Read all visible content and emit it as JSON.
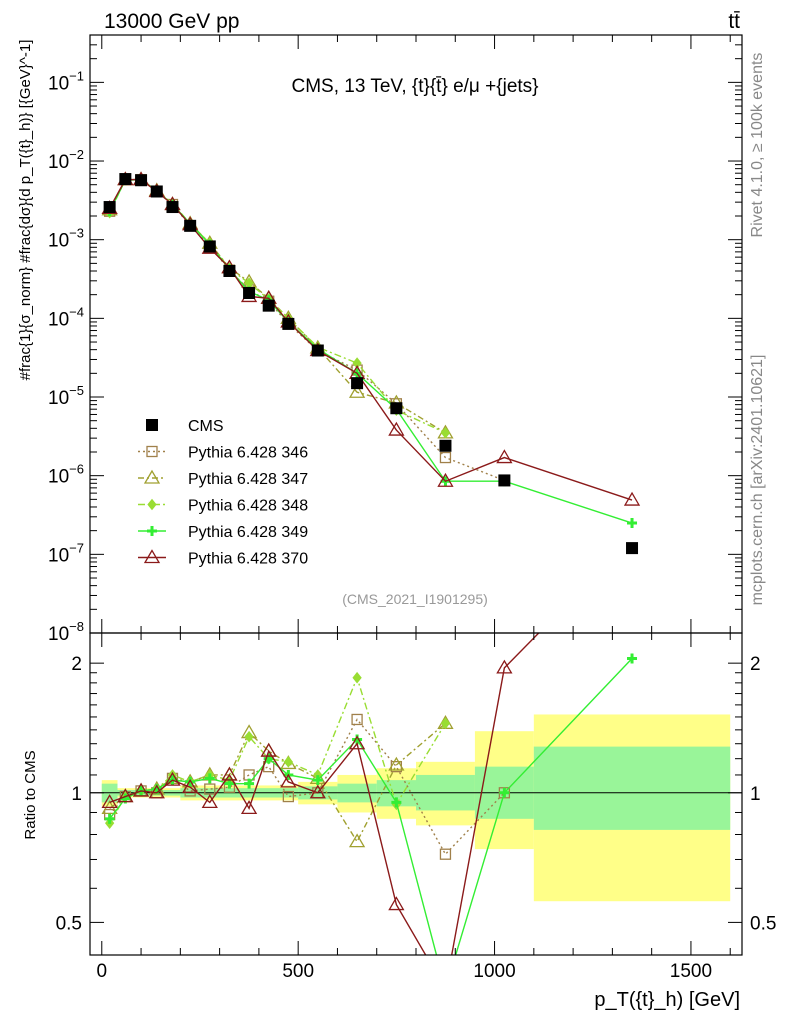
{
  "header": {
    "left": "13000 GeV pp",
    "right": "tt̄"
  },
  "side_labels": {
    "rivet": "Rivet 4.1.0, ≥ 100k events",
    "mcplots": "mcplots.cern.ch [arXiv:2401.10621]"
  },
  "watermark": "(CMS_2021_I1901295)",
  "chart_data": [
    {
      "type": "line",
      "scale": "log",
      "title": "CMS, 13 TeV, {t}{t̄} e/μ +{jets}",
      "ylabel": "#frac{1}{σ_norm} #frac{dσ}{d p_T({t}_h)} [{GeV}^-1]",
      "ylim": [
        1e-08,
        0.4
      ],
      "xlim": [
        -30,
        1630
      ],
      "legend_position": "center-left",
      "x": [
        20,
        60,
        100,
        140,
        180,
        225,
        275,
        325,
        375,
        425,
        475,
        550,
        650,
        750,
        875,
        1025,
        1350
      ],
      "series": [
        {
          "name": "CMS",
          "color": "#000000",
          "marker": "square-filled",
          "dash": "none",
          "values": [
            0.0026,
            0.0059,
            0.0057,
            0.0041,
            0.0026,
            0.0015,
            0.00082,
            0.0004,
            0.00021,
            0.000145,
            8.5e-05,
            3.9e-05,
            1.5e-05,
            7.2e-06,
            2.4e-06,
            8.7e-07,
            1.2e-07
          ]
        },
        {
          "name": "Pythia 6.428 346",
          "color": "#a0804a",
          "marker": "square-open",
          "dash": "2,3",
          "values": [
            0.0023,
            0.0058,
            0.0058,
            0.0041,
            0.0028,
            0.0015,
            0.00083,
            0.00041,
            0.00023,
            0.000165,
            8.5e-05,
            3.9e-05,
            2.2e-05,
            8.2e-06,
            1.7e-06,
            8.7e-07,
            null
          ]
        },
        {
          "name": "Pythia 6.428 347",
          "color": "#a0a030",
          "marker": "triangle-open",
          "dash": "6,3,2,3",
          "values": [
            0.0024,
            0.0058,
            0.0058,
            0.0042,
            0.0028,
            0.0016,
            0.0009,
            0.00044,
            0.00029,
            0.00018,
            0.0001,
            4.2e-05,
            1.15e-05,
            8.4e-06,
            3.5e-06,
            null,
            null
          ]
        },
        {
          "name": "Pythia 6.428 348",
          "color": "#99dd33",
          "marker": "diamond",
          "dash": "7,3,2,3",
          "values": [
            0.0022,
            0.0058,
            0.0058,
            0.0042,
            0.0029,
            0.0016,
            0.0009,
            0.00043,
            0.00028,
            0.000175,
            0.0001,
            4.3e-05,
            2.7e-05,
            6.8e-06,
            3.5e-06,
            null,
            null
          ]
        },
        {
          "name": "Pythia 6.428 349",
          "color": "#33ee33",
          "marker": "cross",
          "dash": "none",
          "values": [
            0.0023,
            0.0057,
            0.0058,
            0.0042,
            0.0028,
            0.0016,
            0.00087,
            0.00042,
            0.00022,
            0.00017,
            9e-05,
            4.1e-05,
            2e-05,
            7e-06,
            8.5e-07,
            8.5e-07,
            2.5e-07
          ]
        },
        {
          "name": "Pythia 6.428 370",
          "color": "#8b1a1a",
          "marker": "triangle-open",
          "dash": "none",
          "values": [
            0.0025,
            0.0058,
            0.0058,
            0.0041,
            0.0028,
            0.00155,
            0.00078,
            0.00044,
            0.00019,
            0.00018,
            9e-05,
            3.9e-05,
            2e-05,
            3.8e-06,
            8.5e-07,
            1.7e-06,
            4.9e-07
          ]
        }
      ]
    },
    {
      "type": "line",
      "scale": "log",
      "ylabel": "Ratio to CMS",
      "xlabel": "p_T({t}_h) [GeV]",
      "ylim": [
        0.42,
        2.35
      ],
      "yticks": [
        0.5,
        1,
        2
      ],
      "xticks": [
        0,
        500,
        1000,
        1500
      ],
      "xlim": [
        -30,
        1630
      ],
      "bands": [
        {
          "xmin": 0,
          "xmax": 40,
          "inner": [
            0.95,
            1.05
          ],
          "outer": [
            0.93,
            1.07
          ]
        },
        {
          "xmin": 40,
          "xmax": 200,
          "inner": [
            0.985,
            1.015
          ],
          "outer": [
            0.975,
            1.025
          ]
        },
        {
          "xmin": 200,
          "xmax": 500,
          "inner": [
            0.975,
            1.025
          ],
          "outer": [
            0.96,
            1.04
          ]
        },
        {
          "xmin": 500,
          "xmax": 600,
          "inner": [
            0.965,
            1.035
          ],
          "outer": [
            0.94,
            1.06
          ]
        },
        {
          "xmin": 600,
          "xmax": 700,
          "inner": [
            0.95,
            1.05
          ],
          "outer": [
            0.9,
            1.1
          ]
        },
        {
          "xmin": 700,
          "xmax": 800,
          "inner": [
            0.93,
            1.07
          ],
          "outer": [
            0.87,
            1.14
          ]
        },
        {
          "xmin": 800,
          "xmax": 950,
          "inner": [
            0.91,
            1.1
          ],
          "outer": [
            0.84,
            1.18
          ]
        },
        {
          "xmin": 950,
          "xmax": 1100,
          "inner": [
            0.87,
            1.15
          ],
          "outer": [
            0.74,
            1.39
          ]
        },
        {
          "xmin": 1100,
          "xmax": 1600,
          "inner": [
            0.82,
            1.28
          ],
          "outer": [
            0.56,
            1.52
          ]
        }
      ],
      "x": [
        20,
        60,
        100,
        140,
        180,
        225,
        275,
        325,
        375,
        425,
        475,
        550,
        650,
        750,
        875,
        1025,
        1350
      ],
      "series": [
        {
          "name": "Pythia 6.428 346",
          "color": "#a0804a",
          "marker": "square-open",
          "dash": "2,3",
          "values": [
            0.89,
            0.98,
            1.01,
            1.0,
            1.08,
            1.01,
            1.02,
            1.03,
            1.1,
            1.15,
            0.98,
            1.0,
            1.48,
            1.15,
            0.72,
            1.0,
            null
          ]
        },
        {
          "name": "Pythia 6.428 347",
          "color": "#a0a030",
          "marker": "triangle-open",
          "dash": "6,3,2,3",
          "values": [
            0.92,
            0.98,
            1.01,
            1.02,
            1.08,
            1.06,
            1.1,
            1.1,
            1.38,
            1.25,
            1.17,
            1.08,
            0.77,
            1.16,
            1.45,
            null,
            null
          ]
        },
        {
          "name": "Pythia 6.428 348",
          "color": "#99dd33",
          "marker": "diamond",
          "dash": "7,3,2,3",
          "values": [
            0.85,
            0.98,
            1.01,
            1.02,
            1.1,
            1.06,
            1.1,
            1.07,
            1.35,
            1.2,
            1.18,
            1.1,
            1.85,
            0.94,
            1.45,
            null,
            null
          ]
        },
        {
          "name": "Pythia 6.428 349",
          "color": "#33ee33",
          "marker": "cross",
          "dash": "none",
          "values": [
            0.87,
            0.97,
            1.01,
            1.02,
            1.07,
            1.06,
            1.08,
            1.05,
            1.05,
            1.2,
            1.1,
            1.07,
            1.33,
            0.95,
            0.35,
            1.0,
            2.05
          ]
        },
        {
          "name": "Pythia 6.428 370",
          "color": "#8b1a1a",
          "marker": "triangle-open",
          "dash": "none",
          "values": [
            0.95,
            0.98,
            1.01,
            1.0,
            1.07,
            1.03,
            0.95,
            1.1,
            0.92,
            1.25,
            1.06,
            1.0,
            1.3,
            0.55,
            0.35,
            1.95,
            3.9
          ]
        }
      ]
    }
  ]
}
